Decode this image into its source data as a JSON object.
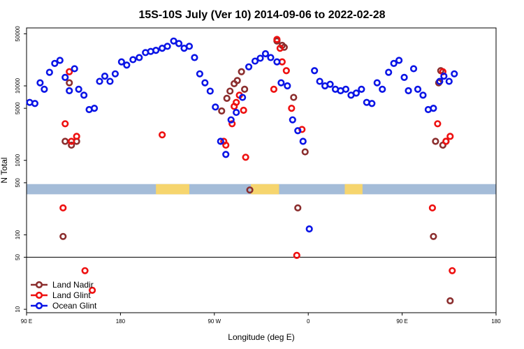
{
  "chart_data": {
    "type": "scatter",
    "title": "15S-10S July (Ver 10)   2014-09-06 to 2022-02-28",
    "xlabel": "Longitude (deg E)",
    "ylabel": "N Total",
    "x_scale": "linear",
    "y_scale": "log",
    "xlim": [
      90,
      540
    ],
    "ylim": [
      9,
      60000
    ],
    "grid": false,
    "legend_position": "bottom-left",
    "x_ticks": [
      {
        "value": 90,
        "label": "90 E"
      },
      {
        "value": 180,
        "label": "180"
      },
      {
        "value": 270,
        "label": "90 W"
      },
      {
        "value": 360,
        "label": "0"
      },
      {
        "value": 450,
        "label": "90 E"
      },
      {
        "value": 540,
        "label": "180"
      }
    ],
    "y_ticks": [
      {
        "value": 10,
        "label": "10"
      },
      {
        "value": 50,
        "label": "50"
      },
      {
        "value": 100,
        "label": "100"
      },
      {
        "value": 500,
        "label": "500"
      },
      {
        "value": 1000,
        "label": "1000"
      },
      {
        "value": 5000,
        "label": "5000"
      },
      {
        "value": 10000,
        "label": "10000"
      },
      {
        "value": 50000,
        "label": "50000"
      }
    ],
    "reference_line_y": 50,
    "land_strip": {
      "y_low": 350,
      "y_high": 480,
      "water_color": "#a4bcd8",
      "land_color": "#f6d56e",
      "land_segms": [
        [
          214,
          246
        ],
        [
          305,
          332
        ],
        [
          395,
          412
        ]
      ]
    },
    "series": [
      {
        "name": "Land Nadir",
        "color": "#8b2e2e",
        "points": [
          [
            125,
            95
          ],
          [
            127,
            1800
          ],
          [
            131,
            11000
          ],
          [
            133,
            1600
          ],
          [
            138,
            1800
          ],
          [
            277,
            4600
          ],
          [
            282,
            6800
          ],
          [
            285,
            8500
          ],
          [
            289,
            10700
          ],
          [
            292,
            11800
          ],
          [
            296,
            15500
          ],
          [
            299,
            9000
          ],
          [
            304,
            400
          ],
          [
            330,
            40000
          ],
          [
            335,
            35000
          ],
          [
            337,
            33000
          ],
          [
            346,
            7000
          ],
          [
            350,
            230
          ],
          [
            357,
            1300
          ],
          [
            480,
            95
          ],
          [
            482,
            1800
          ],
          [
            485,
            11000
          ],
          [
            487,
            16000
          ],
          [
            489,
            1600
          ],
          [
            492,
            1800
          ],
          [
            496,
            13
          ]
        ]
      },
      {
        "name": "Land Glint",
        "color": "#ee1010",
        "points": [
          [
            125,
            230
          ],
          [
            127,
            3100
          ],
          [
            131,
            15500
          ],
          [
            133,
            1800
          ],
          [
            138,
            2100
          ],
          [
            146,
            33
          ],
          [
            153,
            18
          ],
          [
            220,
            2200
          ],
          [
            279,
            1800
          ],
          [
            281,
            1600
          ],
          [
            287,
            3100
          ],
          [
            289,
            5300
          ],
          [
            291,
            6000
          ],
          [
            294,
            7500
          ],
          [
            298,
            4700
          ],
          [
            300,
            1100
          ],
          [
            327,
            9000
          ],
          [
            330,
            42000
          ],
          [
            333,
            32000
          ],
          [
            335,
            21000
          ],
          [
            339,
            16000
          ],
          [
            344,
            5000
          ],
          [
            349,
            53
          ],
          [
            354,
            2600
          ],
          [
            479,
            230
          ],
          [
            484,
            3100
          ],
          [
            489,
            15500
          ],
          [
            492,
            1800
          ],
          [
            496,
            2100
          ],
          [
            498,
            33
          ]
        ]
      },
      {
        "name": "Ocean Glint",
        "color": "#0a14e6",
        "points": [
          [
            93,
            6000
          ],
          [
            98,
            5800
          ],
          [
            103,
            11000
          ],
          [
            107,
            9000
          ],
          [
            112,
            15200
          ],
          [
            117,
            20000
          ],
          [
            122,
            22000
          ],
          [
            127,
            13000
          ],
          [
            131,
            8600
          ],
          [
            136,
            17000
          ],
          [
            140,
            9000
          ],
          [
            145,
            7500
          ],
          [
            150,
            4800
          ],
          [
            155,
            5000
          ],
          [
            160,
            11500
          ],
          [
            165,
            13500
          ],
          [
            170,
            11500
          ],
          [
            175,
            14500
          ],
          [
            181,
            21000
          ],
          [
            186,
            19000
          ],
          [
            192,
            22500
          ],
          [
            198,
            24000
          ],
          [
            204,
            28000
          ],
          [
            209,
            29000
          ],
          [
            214,
            30000
          ],
          [
            220,
            32000
          ],
          [
            225,
            34000
          ],
          [
            231,
            40000
          ],
          [
            236,
            37000
          ],
          [
            241,
            32000
          ],
          [
            246,
            34000
          ],
          [
            251,
            24000
          ],
          [
            256,
            14500
          ],
          [
            261,
            11000
          ],
          [
            266,
            8500
          ],
          [
            271,
            5200
          ],
          [
            276,
            1800
          ],
          [
            281,
            1200
          ],
          [
            286,
            3500
          ],
          [
            291,
            4400
          ],
          [
            297,
            7000
          ],
          [
            303,
            18000
          ],
          [
            309,
            21500
          ],
          [
            314,
            23500
          ],
          [
            319,
            27000
          ],
          [
            324,
            24000
          ],
          [
            330,
            21000
          ],
          [
            334,
            11000
          ],
          [
            340,
            10000
          ],
          [
            345,
            3500
          ],
          [
            350,
            2500
          ],
          [
            355,
            1800
          ],
          [
            361,
            120
          ],
          [
            366,
            16000
          ],
          [
            371,
            11500
          ],
          [
            376,
            10000
          ],
          [
            381,
            10500
          ],
          [
            386,
            9000
          ],
          [
            391,
            8600
          ],
          [
            396,
            9000
          ],
          [
            401,
            7500
          ],
          [
            406,
            8000
          ],
          [
            411,
            9000
          ],
          [
            416,
            6000
          ],
          [
            421,
            5800
          ],
          [
            426,
            11000
          ],
          [
            431,
            9000
          ],
          [
            437,
            15200
          ],
          [
            442,
            20000
          ],
          [
            447,
            22000
          ],
          [
            452,
            13000
          ],
          [
            456,
            8600
          ],
          [
            461,
            17000
          ],
          [
            465,
            9000
          ],
          [
            470,
            7500
          ],
          [
            475,
            4800
          ],
          [
            480,
            5000
          ],
          [
            486,
            11500
          ],
          [
            490,
            13500
          ],
          [
            495,
            11500
          ],
          [
            500,
            14500
          ]
        ]
      }
    ]
  }
}
